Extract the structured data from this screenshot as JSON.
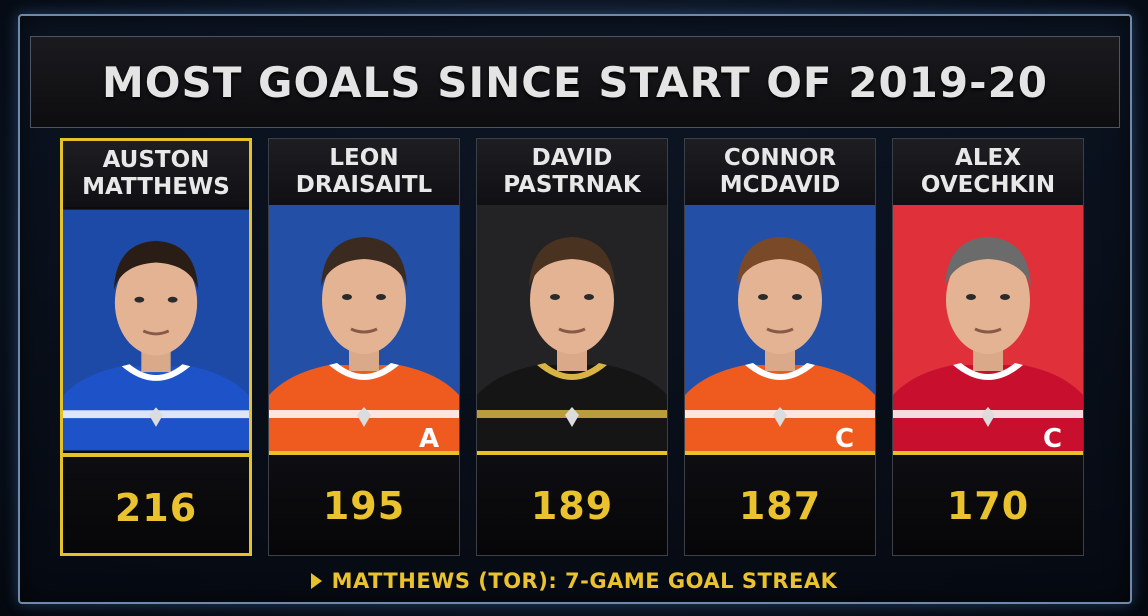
{
  "title": "MOST GOALS SINCE START OF 2019-20",
  "players": [
    {
      "first": "AUSTON",
      "last": "MATTHEWS",
      "goals": "216",
      "highlight": true,
      "bg": "#1d4aa6",
      "jersey": "#1d52c9",
      "trim": "#ffffff",
      "hair": "#2a1d16",
      "letter": ""
    },
    {
      "first": "LEON",
      "last": "DRAISAITL",
      "goals": "195",
      "highlight": false,
      "bg": "#2350a6",
      "jersey": "#ef5a1f",
      "trim": "#ffffff",
      "hair": "#3a2a1f",
      "letter": "A"
    },
    {
      "first": "DAVID",
      "last": "PASTRNAK",
      "goals": "189",
      "highlight": false,
      "bg": "#232325",
      "jersey": "#151515",
      "trim": "#d8b442",
      "hair": "#4a3220",
      "letter": ""
    },
    {
      "first": "CONNOR",
      "last": "MCDAVID",
      "goals": "187",
      "highlight": false,
      "bg": "#2350a6",
      "jersey": "#ef5a1f",
      "trim": "#ffffff",
      "hair": "#7a4a28",
      "letter": "C"
    },
    {
      "first": "ALEX",
      "last": "OVECHKIN",
      "goals": "170",
      "highlight": false,
      "bg": "#e0303a",
      "jersey": "#c8102e",
      "trim": "#ffffff",
      "hair": "#6b6b6b",
      "letter": "C"
    }
  ],
  "footer": {
    "text": "MATTHEWS (TOR): 7-GAME GOAL STREAK",
    "icon": "play-arrow-icon"
  },
  "colors": {
    "accent": "#e6c229",
    "title": "#e4e4e4"
  }
}
